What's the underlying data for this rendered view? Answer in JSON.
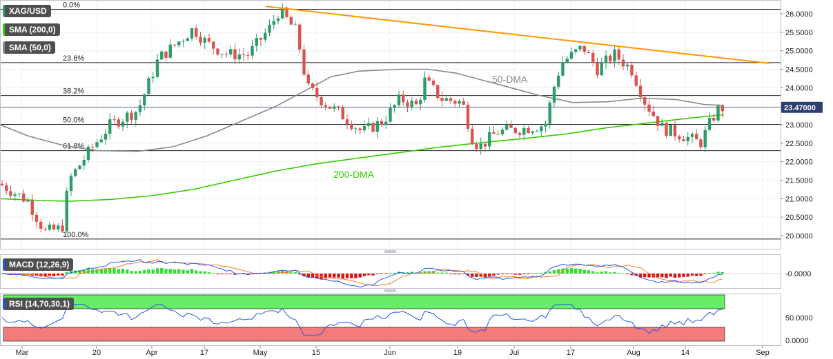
{
  "chart_data": {
    "type": "candlestick",
    "symbol": "XAG/USD",
    "indicators": {
      "sma200_label": "SMA (200,0)",
      "sma50_label": "SMA (50,0)",
      "macd_label": "MACD (12,26,9)",
      "rsi_label": "RSI (14,70,30,1)"
    },
    "price_axis": {
      "ticks": [
        "26.0000",
        "25.5000",
        "25.0000",
        "24.5000",
        "24.0000",
        "23.5000",
        "23.0000",
        "22.5000",
        "22.0000",
        "21.5000",
        "21.0000",
        "20.5000",
        "20.0000"
      ],
      "ylim": [
        19.8,
        26.2
      ],
      "last_price": "23.47000",
      "last_price_value": 23.47
    },
    "macd_axis": {
      "tick": "-0.0000"
    },
    "rsi_axis": {
      "ticks": [
        "50.0000",
        "0.0000"
      ],
      "ylim": [
        0,
        100
      ],
      "overbought": 70,
      "oversold": 30
    },
    "x_axis": {
      "labels": [
        "Mar",
        "20",
        "Apr",
        "17",
        "May",
        "15",
        "Jun",
        "19",
        "Jul",
        "17",
        "Aug",
        "14",
        "Sep"
      ]
    },
    "fibonacci": [
      {
        "label": "0.0%",
        "value": 26.12
      },
      {
        "label": "23.6%",
        "value": 24.68
      },
      {
        "label": "38.2%",
        "value": 23.79
      },
      {
        "label": "50.0%",
        "value": 23.01
      },
      {
        "label": "61.8%",
        "value": 22.3
      },
      {
        "label": "100.0%",
        "value": 19.91
      }
    ],
    "annotations": [
      {
        "text": "50-DMA",
        "color": "#888888"
      },
      {
        "text": "200-DMA",
        "color": "#33cc00"
      }
    ],
    "trendline": {
      "from_value": 26.2,
      "to_value": 24.66,
      "color": "#ff9900"
    },
    "candle_colors": {
      "up": "#2e9b6a",
      "down": "#d9534f"
    }
  }
}
